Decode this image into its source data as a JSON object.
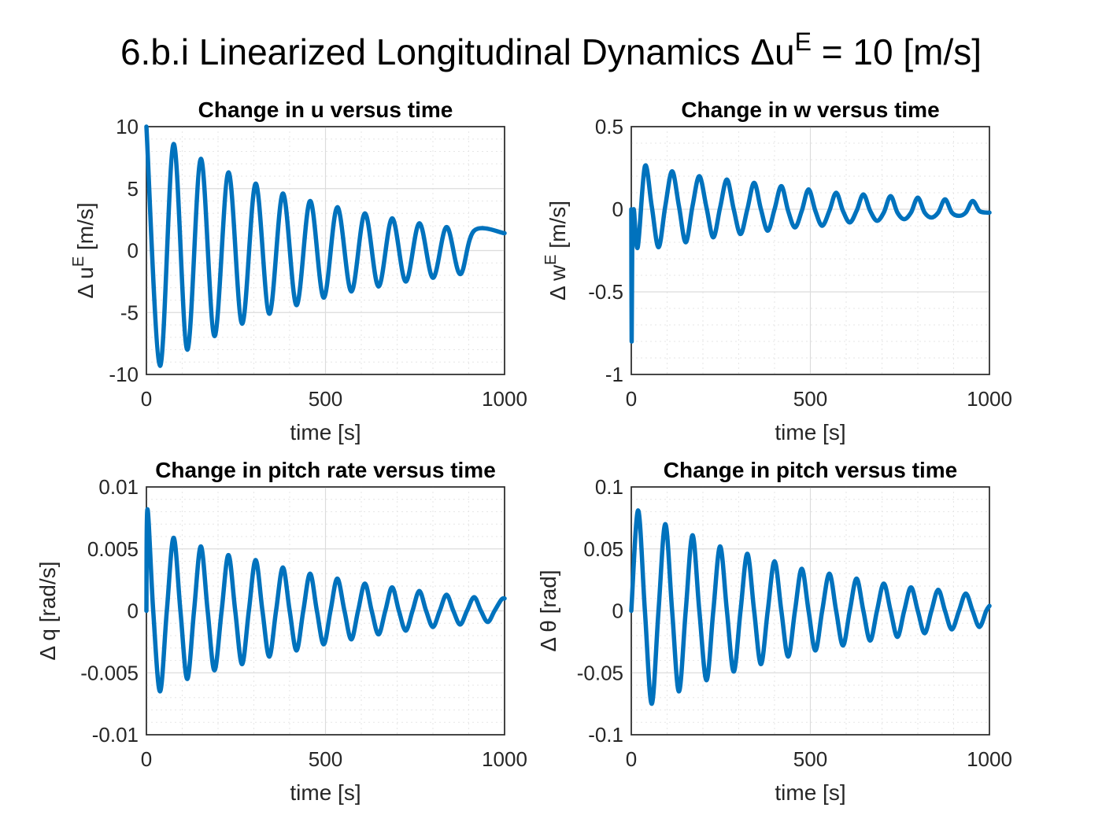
{
  "figure": {
    "title_prefix": "6.b.i Linearized Longitudinal Dynamics ",
    "title_delta": "Δu",
    "title_superscript": "E",
    "title_suffix": " = 10 [m/s]"
  },
  "colors": {
    "series": "#0072BD"
  },
  "chart_data": [
    {
      "type": "line",
      "title": "Change in u versus time",
      "xlabel": "time [s]",
      "ylabel": "Δ u^E [m/s]",
      "ylabel_parts": {
        "prefix": "Δ u",
        "sup": "E",
        "suffix": " [m/s]"
      },
      "xlim": [
        0,
        1000
      ],
      "ylim": [
        -10,
        10
      ],
      "xticks": [
        0,
        500,
        1000
      ],
      "xtick_labels": [
        "0",
        "500",
        "1000"
      ],
      "yticks": [
        -10,
        -5,
        0,
        5,
        10
      ],
      "ytick_labels": [
        "-10",
        "-5",
        "0",
        "5",
        "10"
      ],
      "grid": true,
      "series": [
        {
          "x": [
            0,
            38,
            76,
            114,
            152,
            190,
            229,
            267,
            305,
            343,
            381,
            419,
            457,
            495,
            533,
            572,
            610,
            648,
            686,
            724,
            762,
            800,
            838,
            876,
            915,
            1000
          ],
          "y": [
            10,
            -9.3,
            8.6,
            -8.0,
            7.4,
            -6.9,
            6.3,
            -5.9,
            5.4,
            -5.1,
            4.6,
            -4.4,
            4.0,
            -3.8,
            3.5,
            -3.3,
            3.0,
            -2.9,
            2.6,
            -2.5,
            2.2,
            -2.2,
            1.9,
            -1.9,
            1.6,
            1.4
          ]
        }
      ]
    },
    {
      "type": "line",
      "title": "Change in w versus time",
      "xlabel": "time [s]",
      "ylabel": "Δ w^E [m/s]",
      "ylabel_parts": {
        "prefix": "Δ w",
        "sup": "E",
        "suffix": " [m/s]"
      },
      "xlim": [
        0,
        1000
      ],
      "ylim": [
        -1,
        0.5
      ],
      "xticks": [
        0,
        500,
        1000
      ],
      "xtick_labels": [
        "0",
        "500",
        "1000"
      ],
      "yticks": [
        -1,
        -0.5,
        0,
        0.5
      ],
      "ytick_labels": [
        "-1",
        "-0.5",
        "0",
        "0.5"
      ],
      "grid": true,
      "series": [
        {
          "x": [
            0,
            1,
            3,
            5,
            7,
            18,
            38,
            57,
            76,
            95,
            114,
            133,
            152,
            171,
            190,
            210,
            229,
            248,
            267,
            286,
            305,
            324,
            343,
            362,
            381,
            400,
            419,
            438,
            457,
            476,
            495,
            514,
            533,
            553,
            572,
            591,
            610,
            629,
            648,
            667,
            686,
            705,
            724,
            743,
            762,
            781,
            800,
            819,
            838,
            857,
            876,
            895,
            915,
            934,
            953,
            972,
            991,
            1000
          ],
          "y": [
            0,
            -0.8,
            -0.1,
            -0.2,
            0,
            -0.23,
            0.26,
            0.02,
            -0.23,
            0.02,
            0.23,
            0.02,
            -0.2,
            0.02,
            0.2,
            0.01,
            -0.17,
            0.01,
            0.18,
            0.0,
            -0.15,
            0.0,
            0.16,
            0.0,
            -0.13,
            0.0,
            0.14,
            -0.01,
            -0.11,
            -0.01,
            0.12,
            -0.01,
            -0.1,
            -0.01,
            0.1,
            -0.01,
            -0.08,
            -0.01,
            0.09,
            -0.01,
            -0.07,
            -0.02,
            0.08,
            -0.02,
            -0.06,
            -0.02,
            0.07,
            -0.02,
            -0.05,
            -0.02,
            0.06,
            -0.02,
            -0.04,
            -0.02,
            0.05,
            -0.01,
            -0.02,
            -0.02
          ]
        }
      ]
    },
    {
      "type": "line",
      "title": "Change in pitch rate versus time",
      "xlabel": "time [s]",
      "ylabel": "Δ q [rad/s]",
      "ylabel_parts": {
        "prefix": "Δ q [rad/s]",
        "sup": "",
        "suffix": ""
      },
      "xlim": [
        0,
        1000
      ],
      "ylim": [
        -0.01,
        0.01
      ],
      "xticks": [
        0,
        500,
        1000
      ],
      "xtick_labels": [
        "0",
        "500",
        "1000"
      ],
      "yticks": [
        -0.01,
        -0.005,
        0,
        0.005,
        0.01
      ],
      "ytick_labels": [
        "-0.01",
        "-0.005",
        "0",
        "0.005",
        "0.01"
      ],
      "grid": true,
      "series": [
        {
          "x": [
            0,
            3,
            19,
            38,
            57,
            76,
            95,
            114,
            133,
            152,
            171,
            190,
            210,
            229,
            248,
            267,
            286,
            305,
            324,
            343,
            362,
            381,
            400,
            419,
            438,
            457,
            476,
            495,
            514,
            533,
            553,
            572,
            591,
            610,
            629,
            648,
            667,
            686,
            705,
            724,
            743,
            762,
            781,
            800,
            819,
            838,
            857,
            876,
            895,
            915,
            934,
            953,
            972,
            991,
            1000
          ],
          "y": [
            0,
            0.0082,
            0.0,
            -0.0065,
            0.0,
            0.0059,
            0.0,
            -0.0055,
            0.0,
            0.0052,
            0.0,
            -0.0048,
            0.0,
            0.0045,
            0.0,
            -0.0043,
            0.0,
            0.0041,
            0.0,
            -0.0037,
            0.0,
            0.0035,
            0.0,
            -0.0032,
            0.0,
            0.003,
            0.0,
            -0.0027,
            0.0,
            0.0026,
            0.0,
            -0.0023,
            0.0,
            0.0022,
            0.0,
            -0.0019,
            0.0,
            0.0019,
            0.0,
            -0.0016,
            0.0,
            0.0016,
            0.0,
            -0.0013,
            0.0,
            0.0013,
            0.0,
            -0.0011,
            0.0,
            0.0011,
            0.0,
            -0.0009,
            0.0,
            0.0009,
            0.001
          ]
        }
      ]
    },
    {
      "type": "line",
      "title": "Change in pitch versus time",
      "xlabel": "time [s]",
      "ylabel": "Δ θ [rad]",
      "ylabel_parts": {
        "prefix": "Δ θ [rad]",
        "sup": "",
        "suffix": ""
      },
      "xlim": [
        0,
        1000
      ],
      "ylim": [
        -0.1,
        0.1
      ],
      "xticks": [
        0,
        500,
        1000
      ],
      "xtick_labels": [
        "0",
        "500",
        "1000"
      ],
      "yticks": [
        -0.1,
        -0.05,
        0,
        0.05,
        0.1
      ],
      "ytick_labels": [
        "-0.1",
        "-0.05",
        "0",
        "0.05",
        "0.1"
      ],
      "grid": true,
      "series": [
        {
          "x": [
            0,
            19,
            38,
            57,
            76,
            95,
            114,
            133,
            152,
            171,
            190,
            210,
            229,
            248,
            267,
            286,
            305,
            324,
            343,
            362,
            381,
            400,
            419,
            438,
            457,
            476,
            495,
            514,
            533,
            553,
            572,
            591,
            610,
            629,
            648,
            667,
            686,
            705,
            724,
            743,
            762,
            781,
            800,
            819,
            838,
            857,
            876,
            895,
            915,
            934,
            953,
            972,
            991,
            1000
          ],
          "y": [
            0,
            0.081,
            0.0,
            -0.075,
            0.0,
            0.07,
            0.0,
            -0.065,
            0.0,
            0.061,
            0.0,
            -0.056,
            0.0,
            0.052,
            0.0,
            -0.049,
            0.0,
            0.046,
            0.0,
            -0.043,
            0.0,
            0.04,
            0.0,
            -0.037,
            0.0,
            0.034,
            0.0,
            -0.032,
            0.0,
            0.03,
            0.0,
            -0.028,
            0.0,
            0.026,
            0.0,
            -0.024,
            0.0,
            0.022,
            0.0,
            -0.021,
            0.0,
            0.019,
            0.0,
            -0.018,
            0.0,
            0.017,
            0.0,
            -0.015,
            0.0,
            0.014,
            0.0,
            -0.013,
            0.0,
            0.004
          ]
        }
      ]
    }
  ]
}
